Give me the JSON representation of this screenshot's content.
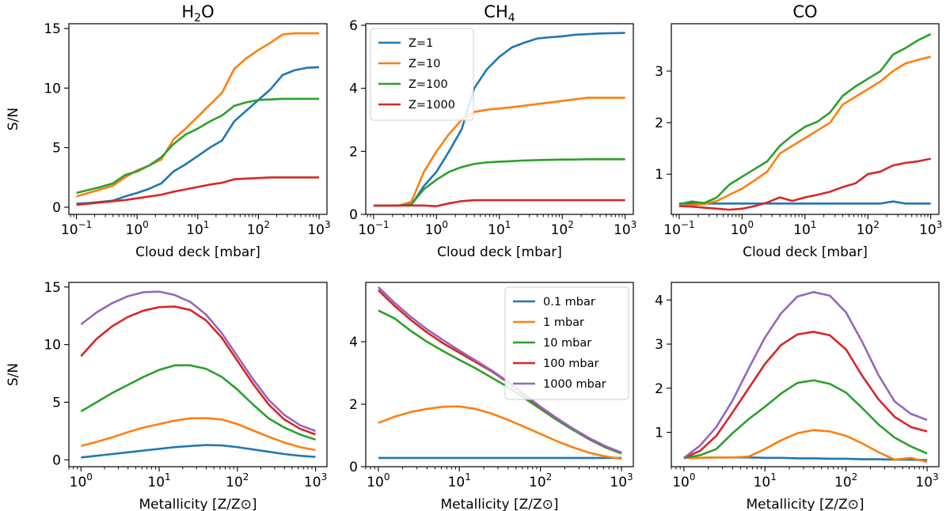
{
  "colors": {
    "blue": "#1f77b4",
    "orange": "#ff7f0e",
    "green": "#2ca02c",
    "red": "#d62728",
    "purple": "#9467bd"
  },
  "chart_data": [
    {
      "type": "line",
      "title": "H2O",
      "title_main": "H",
      "title_sub": "2",
      "title_tail": "O",
      "xlabel": "Cloud deck [mbar]",
      "ylabel": "S/N",
      "xscale": "log",
      "xlim": [
        0.075,
        1350
      ],
      "ylim": [
        -0.6,
        15.4
      ],
      "xticks": [
        0.1,
        1,
        10,
        100,
        1000
      ],
      "xtick_base": "10",
      "xtick_exps": [
        "−1",
        "0",
        "1",
        "2",
        "3"
      ],
      "yticks": [
        0,
        5,
        10,
        15
      ],
      "ytick_labels": [
        "0",
        "5",
        "10",
        "15"
      ],
      "legend": null,
      "x": [
        0.1,
        0.158,
        0.251,
        0.398,
        0.631,
        1,
        1.585,
        2.512,
        3.981,
        6.31,
        10,
        15.85,
        25.12,
        39.81,
        63.1,
        100,
        158.5,
        251.2,
        398.1,
        631,
        1000
      ],
      "series": [
        {
          "name": "Z=1",
          "color": "blue",
          "values": [
            0.3,
            0.35,
            0.45,
            0.55,
            0.9,
            1.2,
            1.55,
            2.0,
            3.0,
            3.6,
            4.3,
            5.0,
            5.6,
            7.2,
            8.1,
            9.0,
            9.9,
            11.1,
            11.5,
            11.7,
            11.75
          ]
        },
        {
          "name": "Z=10",
          "color": "orange",
          "values": [
            0.9,
            1.2,
            1.5,
            1.8,
            2.5,
            3.1,
            3.5,
            4.0,
            5.7,
            6.6,
            7.6,
            8.6,
            9.6,
            11.6,
            12.5,
            13.2,
            13.8,
            14.5,
            14.6,
            14.6,
            14.6
          ]
        },
        {
          "name": "Z=100",
          "color": "green",
          "values": [
            1.2,
            1.45,
            1.7,
            2.0,
            2.7,
            3.0,
            3.5,
            4.2,
            5.3,
            6.1,
            6.6,
            7.2,
            7.7,
            8.5,
            8.8,
            9.0,
            9.05,
            9.1,
            9.1,
            9.1,
            9.1
          ]
        },
        {
          "name": "Z=1000",
          "color": "red",
          "values": [
            0.2,
            0.3,
            0.4,
            0.5,
            0.6,
            0.75,
            0.9,
            1.05,
            1.3,
            1.5,
            1.7,
            1.9,
            2.05,
            2.35,
            2.4,
            2.45,
            2.5,
            2.5,
            2.5,
            2.5,
            2.5
          ]
        }
      ]
    },
    {
      "type": "line",
      "title": "CH4",
      "title_main": "CH",
      "title_sub": "4",
      "title_tail": "",
      "xlabel": "Cloud deck [mbar]",
      "ylabel": "",
      "xscale": "log",
      "xlim": [
        0.075,
        1350
      ],
      "ylim": [
        0,
        6.05
      ],
      "xticks": [
        0.1,
        1,
        10,
        100,
        1000
      ],
      "xtick_base": "10",
      "xtick_exps": [
        "−1",
        "0",
        "1",
        "2",
        "3"
      ],
      "yticks": [
        0,
        2,
        4,
        6
      ],
      "ytick_labels": [
        "0",
        "2",
        "4",
        "6"
      ],
      "legend": "upper left",
      "x": [
        0.1,
        0.158,
        0.251,
        0.398,
        0.631,
        1,
        1.585,
        2.512,
        3.981,
        6.31,
        10,
        15.85,
        25.12,
        39.81,
        63.1,
        100,
        158.5,
        251.2,
        398.1,
        631,
        1000
      ],
      "series": [
        {
          "name": "Z=1",
          "color": "blue",
          "values": [
            0.28,
            0.28,
            0.28,
            0.3,
            0.9,
            1.35,
            2.0,
            2.7,
            4.0,
            4.6,
            5.0,
            5.3,
            5.45,
            5.58,
            5.62,
            5.65,
            5.7,
            5.72,
            5.74,
            5.75,
            5.76
          ]
        },
        {
          "name": "Z=10",
          "color": "orange",
          "values": [
            0.28,
            0.28,
            0.28,
            0.4,
            1.35,
            2.0,
            2.55,
            3.0,
            3.25,
            3.32,
            3.36,
            3.4,
            3.45,
            3.5,
            3.55,
            3.6,
            3.65,
            3.7,
            3.7,
            3.7,
            3.7
          ]
        },
        {
          "name": "Z=100",
          "color": "green",
          "values": [
            0.28,
            0.28,
            0.28,
            0.32,
            0.8,
            1.1,
            1.35,
            1.5,
            1.6,
            1.65,
            1.67,
            1.69,
            1.71,
            1.72,
            1.73,
            1.74,
            1.74,
            1.75,
            1.75,
            1.75,
            1.75
          ]
        },
        {
          "name": "Z=1000",
          "color": "red",
          "values": [
            0.28,
            0.28,
            0.28,
            0.28,
            0.28,
            0.26,
            0.35,
            0.42,
            0.45,
            0.45,
            0.45,
            0.45,
            0.45,
            0.45,
            0.45,
            0.45,
            0.45,
            0.45,
            0.45,
            0.45,
            0.45
          ]
        }
      ]
    },
    {
      "type": "line",
      "title": "CO",
      "title_main": "CO",
      "title_sub": "",
      "title_tail": "",
      "xlabel": "Cloud deck [mbar]",
      "ylabel": "",
      "xscale": "log",
      "xlim": [
        0.075,
        1350
      ],
      "ylim": [
        0.22,
        3.92
      ],
      "xticks": [
        0.1,
        1,
        10,
        100,
        1000
      ],
      "xtick_base": "10",
      "xtick_exps": [
        "−1",
        "0",
        "1",
        "2",
        "3"
      ],
      "yticks": [
        1,
        2,
        3
      ],
      "ytick_labels": [
        "1",
        "2",
        "3"
      ],
      "legend": null,
      "x": [
        0.1,
        0.158,
        0.251,
        0.398,
        0.631,
        1,
        1.585,
        2.512,
        3.981,
        6.31,
        10,
        15.85,
        25.12,
        39.81,
        63.1,
        100,
        158.5,
        251.2,
        398.1,
        631,
        1000
      ],
      "series": [
        {
          "name": "Z=1",
          "color": "blue",
          "values": [
            0.43,
            0.43,
            0.43,
            0.43,
            0.43,
            0.43,
            0.43,
            0.43,
            0.43,
            0.43,
            0.43,
            0.43,
            0.43,
            0.43,
            0.43,
            0.43,
            0.43,
            0.47,
            0.43,
            0.43,
            0.43
          ]
        },
        {
          "name": "Z=10",
          "color": "orange",
          "values": [
            0.38,
            0.4,
            0.42,
            0.48,
            0.6,
            0.72,
            0.88,
            1.05,
            1.4,
            1.55,
            1.7,
            1.85,
            2.0,
            2.35,
            2.5,
            2.65,
            2.8,
            3.0,
            3.15,
            3.22,
            3.28
          ]
        },
        {
          "name": "Z=100",
          "color": "green",
          "values": [
            0.42,
            0.47,
            0.44,
            0.55,
            0.8,
            0.95,
            1.1,
            1.25,
            1.55,
            1.75,
            1.92,
            2.02,
            2.2,
            2.52,
            2.7,
            2.85,
            3.0,
            3.32,
            3.45,
            3.6,
            3.72
          ]
        },
        {
          "name": "Z=1000",
          "color": "red",
          "values": [
            0.38,
            0.37,
            0.35,
            0.33,
            0.31,
            0.33,
            0.38,
            0.45,
            0.55,
            0.48,
            0.55,
            0.6,
            0.66,
            0.75,
            0.82,
            1.0,
            1.05,
            1.17,
            1.22,
            1.25,
            1.3
          ]
        }
      ]
    },
    {
      "type": "line",
      "title": "",
      "title_main": "",
      "title_sub": "",
      "title_tail": "",
      "xlabel": "Metallicity [Z/Z⊙]",
      "ylabel": "S/N",
      "xscale": "log",
      "xlim": [
        0.7,
        1400
      ],
      "ylim": [
        -0.6,
        15.4
      ],
      "xticks": [
        1,
        10,
        100,
        1000
      ],
      "xtick_base": "10",
      "xtick_exps": [
        "0",
        "1",
        "2",
        "3"
      ],
      "yticks": [
        0,
        5,
        10,
        15
      ],
      "ytick_labels": [
        "0",
        "5",
        "10",
        "15"
      ],
      "legend": null,
      "x": [
        1,
        1.585,
        2.512,
        3.981,
        6.31,
        10,
        15.85,
        25.12,
        39.81,
        63.1,
        100,
        158.5,
        251.2,
        398.1,
        631,
        1000
      ],
      "series": [
        {
          "name": "0.1 mbar",
          "color": "blue",
          "values": [
            0.2,
            0.35,
            0.5,
            0.65,
            0.8,
            0.95,
            1.1,
            1.2,
            1.28,
            1.25,
            1.1,
            0.9,
            0.7,
            0.5,
            0.35,
            0.25
          ]
        },
        {
          "name": "1 mbar",
          "color": "orange",
          "values": [
            1.2,
            1.55,
            1.95,
            2.4,
            2.8,
            3.1,
            3.4,
            3.6,
            3.62,
            3.5,
            3.1,
            2.55,
            2.0,
            1.5,
            1.1,
            0.85
          ]
        },
        {
          "name": "10 mbar",
          "color": "green",
          "values": [
            4.2,
            5.0,
            5.8,
            6.5,
            7.2,
            7.8,
            8.2,
            8.2,
            7.9,
            7.2,
            6.1,
            4.8,
            3.6,
            2.8,
            2.2,
            1.75
          ]
        },
        {
          "name": "100 mbar",
          "color": "red",
          "values": [
            9.0,
            10.5,
            11.6,
            12.4,
            12.95,
            13.25,
            13.3,
            13.0,
            12.1,
            10.6,
            8.6,
            6.6,
            4.8,
            3.5,
            2.7,
            2.2
          ]
        },
        {
          "name": "1000 mbar",
          "color": "purple",
          "values": [
            11.75,
            12.8,
            13.6,
            14.2,
            14.55,
            14.6,
            14.3,
            13.7,
            12.6,
            11.0,
            9.0,
            7.0,
            5.2,
            3.9,
            3.0,
            2.5
          ]
        }
      ]
    },
    {
      "type": "line",
      "title": "",
      "title_main": "",
      "title_sub": "",
      "title_tail": "",
      "xlabel": "Metallicity [Z/Z⊙]",
      "ylabel": "",
      "xscale": "log",
      "xlim": [
        0.7,
        1400
      ],
      "ylim": [
        0,
        5.9
      ],
      "xticks": [
        1,
        10,
        100,
        1000
      ],
      "xtick_base": "10",
      "xtick_exps": [
        "0",
        "1",
        "2",
        "3"
      ],
      "yticks": [
        0,
        2,
        4
      ],
      "ytick_labels": [
        "0",
        "2",
        "4"
      ],
      "legend": "upper right",
      "x": [
        1,
        1.585,
        2.512,
        3.981,
        6.31,
        10,
        15.85,
        25.12,
        39.81,
        63.1,
        100,
        158.5,
        251.2,
        398.1,
        631,
        1000
      ],
      "series": [
        {
          "name": "0.1 mbar",
          "color": "blue",
          "values": [
            0.28,
            0.28,
            0.28,
            0.28,
            0.28,
            0.28,
            0.28,
            0.28,
            0.28,
            0.28,
            0.28,
            0.28,
            0.28,
            0.28,
            0.28,
            0.28
          ]
        },
        {
          "name": "1 mbar",
          "color": "orange",
          "values": [
            1.4,
            1.6,
            1.75,
            1.85,
            1.92,
            1.93,
            1.85,
            1.7,
            1.5,
            1.28,
            1.05,
            0.82,
            0.62,
            0.45,
            0.33,
            0.25
          ]
        },
        {
          "name": "10 mbar",
          "color": "green",
          "values": [
            5.0,
            4.75,
            4.35,
            4.0,
            3.7,
            3.42,
            3.15,
            2.85,
            2.55,
            2.2,
            1.85,
            1.5,
            1.18,
            0.88,
            0.62,
            0.42
          ]
        },
        {
          "name": "100 mbar",
          "color": "red",
          "values": [
            5.65,
            5.15,
            4.7,
            4.3,
            3.95,
            3.65,
            3.35,
            3.05,
            2.7,
            2.3,
            1.9,
            1.55,
            1.22,
            0.9,
            0.65,
            0.45
          ]
        },
        {
          "name": "1000 mbar",
          "color": "purple",
          "values": [
            5.75,
            5.25,
            4.8,
            4.4,
            4.05,
            3.72,
            3.4,
            3.08,
            2.72,
            2.32,
            1.92,
            1.56,
            1.22,
            0.92,
            0.66,
            0.45
          ]
        }
      ]
    },
    {
      "type": "line",
      "title": "",
      "title_main": "",
      "title_sub": "",
      "title_tail": "",
      "xlabel": "Metallicity [Z/Z⊙]",
      "ylabel": "",
      "xscale": "log",
      "xlim": [
        0.7,
        1400
      ],
      "ylim": [
        0.22,
        4.4
      ],
      "xticks": [
        1,
        10,
        100,
        1000
      ],
      "xtick_base": "10",
      "xtick_exps": [
        "0",
        "1",
        "2",
        "3"
      ],
      "yticks": [
        1,
        2,
        3,
        4
      ],
      "ytick_labels": [
        "1",
        "2",
        "3",
        "4"
      ],
      "legend": null,
      "x": [
        1,
        1.585,
        2.512,
        3.981,
        6.31,
        10,
        15.85,
        25.12,
        39.81,
        63.1,
        100,
        158.5,
        251.2,
        398.1,
        631,
        1000
      ],
      "series": [
        {
          "name": "0.1 mbar",
          "color": "blue",
          "values": [
            0.42,
            0.42,
            0.43,
            0.43,
            0.43,
            0.42,
            0.42,
            0.41,
            0.41,
            0.4,
            0.4,
            0.39,
            0.39,
            0.38,
            0.38,
            0.37
          ]
        },
        {
          "name": "1 mbar",
          "color": "orange",
          "values": [
            0.42,
            0.42,
            0.43,
            0.43,
            0.45,
            0.62,
            0.82,
            0.98,
            1.05,
            1.02,
            0.92,
            0.75,
            0.55,
            0.38,
            0.42,
            0.33
          ]
        },
        {
          "name": "10 mbar",
          "color": "green",
          "values": [
            0.42,
            0.48,
            0.62,
            0.98,
            1.3,
            1.58,
            1.88,
            2.12,
            2.18,
            2.1,
            1.9,
            1.55,
            1.18,
            0.88,
            0.68,
            0.52
          ]
        },
        {
          "name": "100 mbar",
          "color": "red",
          "values": [
            0.42,
            0.58,
            0.92,
            1.45,
            2.0,
            2.55,
            2.98,
            3.22,
            3.28,
            3.2,
            2.88,
            2.28,
            1.75,
            1.35,
            1.12,
            1.02
          ]
        },
        {
          "name": "1000 mbar",
          "color": "purple",
          "values": [
            0.42,
            0.7,
            1.12,
            1.72,
            2.45,
            3.15,
            3.7,
            4.08,
            4.18,
            4.1,
            3.72,
            3.05,
            2.3,
            1.7,
            1.42,
            1.28
          ]
        }
      ]
    }
  ]
}
